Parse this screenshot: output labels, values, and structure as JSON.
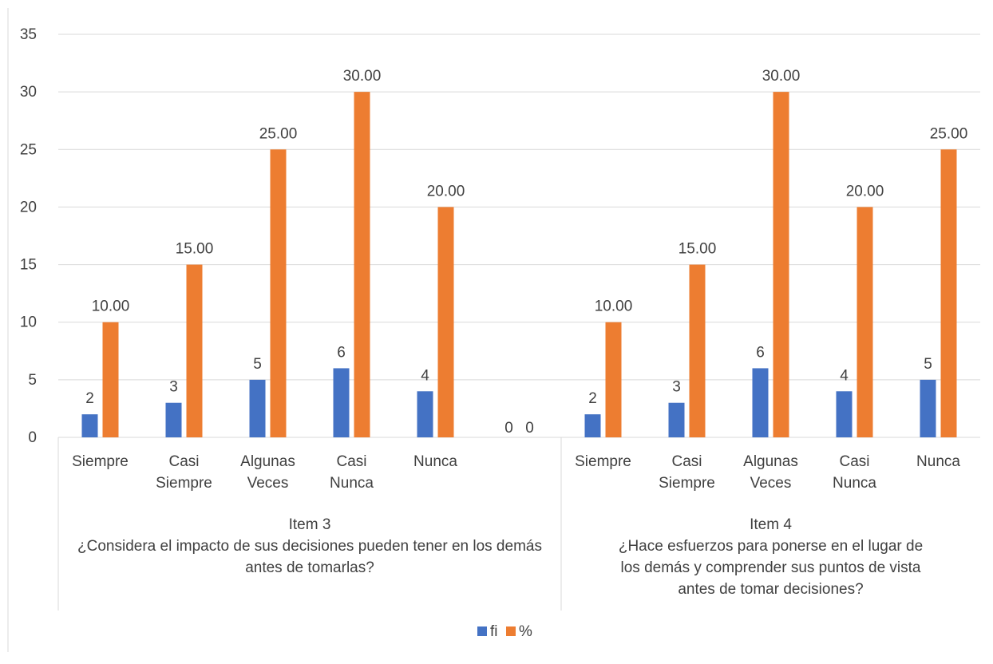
{
  "chart_data": {
    "type": "bar",
    "title": "",
    "xlabel": "",
    "ylabel": "",
    "ylim": [
      0,
      35
    ],
    "yticks": [
      "0",
      "5",
      "10",
      "15",
      "20",
      "25",
      "30",
      "35"
    ],
    "grid": true,
    "legend_position": "bottom-center",
    "groups": [
      {
        "label_lines": [
          "Item 3",
          "¿Considera el impacto de sus decisiones pueden tener en los demás",
          "antes de tomarlas?"
        ],
        "categories": [
          [
            "Siempre"
          ],
          [
            "Casi",
            "Siempre"
          ],
          [
            "Algunas",
            "Veces"
          ],
          [
            "Casi",
            "Nunca"
          ],
          [
            "Nunca"
          ],
          []
        ]
      },
      {
        "label_lines": [
          "Item 4",
          "¿Hace esfuerzos para ponerse en el lugar de",
          "los demás y comprender sus puntos de vista",
          "antes de tomar decisiones?"
        ],
        "categories": [
          [
            "Siempre"
          ],
          [
            "Casi",
            "Siempre"
          ],
          [
            "Algunas",
            "Veces"
          ],
          [
            "Casi",
            "Nunca"
          ],
          [
            "Nunca"
          ]
        ]
      }
    ],
    "series": [
      {
        "name": "fi",
        "color": "#4472c4",
        "values": [
          2,
          3,
          5,
          6,
          4,
          0,
          2,
          3,
          6,
          4,
          5
        ],
        "data_labels": [
          "2",
          "3",
          "5",
          "6",
          "4",
          "0",
          "2",
          "3",
          "6",
          "4",
          "5"
        ]
      },
      {
        "name": "%",
        "color": "#ed7d31",
        "values": [
          10,
          15,
          25,
          30,
          20,
          0,
          10,
          15,
          30,
          20,
          25
        ],
        "data_labels": [
          "10.00",
          "15.00",
          "25.00",
          "30.00",
          "20.00",
          "0",
          "10.00",
          "15.00",
          "30.00",
          "20.00",
          "25.00"
        ]
      }
    ]
  }
}
